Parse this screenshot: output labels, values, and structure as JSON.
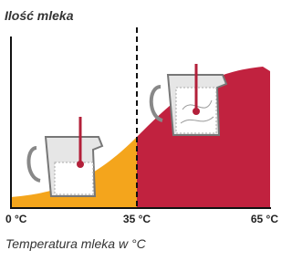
{
  "y_axis_label": "Ilość mleka",
  "x_ticks": [
    "0 °C",
    "35 °C",
    "65 °C"
  ],
  "x_axis_label": "Temperatura mleka w °C"
}
